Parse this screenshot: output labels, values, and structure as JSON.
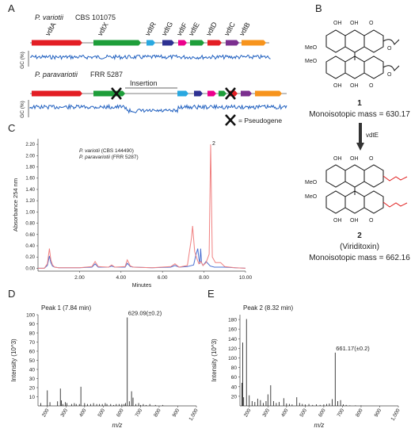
{
  "panels": {
    "A": "A",
    "B": "B",
    "C": "C",
    "D": "D",
    "E": "E"
  },
  "panel_a": {
    "strain1_species": "P. variotii",
    "strain1_id": "CBS 101075",
    "strain2_species": "P. paravariotii",
    "strain2_id": "FRR 5287",
    "genes": [
      "vdtA",
      "vdtX",
      "vdtR",
      "vdtG",
      "vdtF",
      "vdtE",
      "vdtD",
      "vdtC",
      "vdtB"
    ],
    "gene_colors": [
      "#e31e24",
      "#1e9e3a",
      "#29a8e0",
      "#2e3192",
      "#ec008c",
      "#1e9e3a",
      "#e31e24",
      "#7b2f8f",
      "#f7941d"
    ],
    "gc_label": "GC (%)",
    "insertion_label": "Insertion",
    "pseudogene_label": "= Pseudogene",
    "gc_color": "#1f5fbf"
  },
  "panel_b": {
    "compound1_number": "1",
    "compound1_mass": "Monoisotopic mass = 630.17",
    "enzyme": "vdtE",
    "compound2_number": "2",
    "compound2_name": "(Viriditoxin)",
    "compound2_mass": "Monoisotopic mass = 662.16",
    "ring_labels": {
      "oh": "OH",
      "o": "O",
      "meo": "MeO"
    }
  },
  "chart_data": [
    {
      "type": "line",
      "panel": "C",
      "ylabel": "Absorbance 254 nm",
      "xlabel": "Minutes",
      "xlim": [
        0,
        10
      ],
      "ylim": [
        -0.05,
        2.3
      ],
      "xticks": [
        "2.00",
        "4.00",
        "6.00",
        "8.00",
        "10.00"
      ],
      "yticks": [
        "0.00",
        "0.20",
        "0.40",
        "0.60",
        "0.80",
        "1.00",
        "1.20",
        "1.40",
        "1.60",
        "1.80",
        "2.00",
        "2.20"
      ],
      "legend_placement": "top-left",
      "peak_label": "2",
      "series": [
        {
          "name_species": "P. variotii",
          "name_strain": "(CBS 144490)",
          "color": "#f08080",
          "x": [
            0,
            0.3,
            0.45,
            0.55,
            0.62,
            0.7,
            0.8,
            1.0,
            2.0,
            2.6,
            2.75,
            2.9,
            3.4,
            3.55,
            3.7,
            4.2,
            4.3,
            4.45,
            4.6,
            5.5,
            6.4,
            6.6,
            6.8,
            7.2,
            7.4,
            7.45,
            7.55,
            7.65,
            7.75,
            7.85,
            7.95,
            8.1,
            8.25,
            8.32,
            8.4,
            8.55,
            8.8,
            9.0,
            9.5,
            10.0
          ],
          "y": [
            0.0,
            0.0,
            0.08,
            0.35,
            0.15,
            0.06,
            0.02,
            0.01,
            0.01,
            0.03,
            0.12,
            0.03,
            0.02,
            0.06,
            0.02,
            0.03,
            0.15,
            0.04,
            0.02,
            0.01,
            0.03,
            0.08,
            0.02,
            0.05,
            0.55,
            0.75,
            0.3,
            0.18,
            0.08,
            0.12,
            0.05,
            0.1,
            0.25,
            2.2,
            0.2,
            0.1,
            0.1,
            0.03,
            0.01,
            0.0
          ]
        },
        {
          "name_species": "P. paravariotii",
          "name_strain": "(FRR 5287)",
          "color": "#4a6fd1",
          "x": [
            0,
            0.3,
            0.45,
            0.55,
            0.62,
            0.7,
            0.8,
            1.0,
            2.0,
            2.6,
            2.75,
            2.9,
            3.4,
            3.55,
            3.7,
            4.2,
            4.3,
            4.45,
            4.6,
            5.5,
            6.4,
            6.6,
            6.8,
            7.2,
            7.5,
            7.6,
            7.7,
            7.75,
            7.8,
            7.84,
            7.88,
            7.95,
            8.1,
            8.3,
            8.5,
            9.0,
            9.5,
            10.0
          ],
          "y": [
            0.0,
            0.0,
            0.05,
            0.22,
            0.1,
            0.04,
            0.02,
            0.01,
            0.01,
            0.02,
            0.08,
            0.02,
            0.02,
            0.04,
            0.02,
            0.02,
            0.09,
            0.03,
            0.02,
            0.01,
            0.02,
            0.05,
            0.02,
            0.03,
            0.06,
            0.22,
            0.35,
            0.18,
            0.08,
            0.35,
            0.1,
            0.05,
            0.12,
            0.04,
            0.02,
            0.02,
            0.01,
            0.0
          ]
        }
      ]
    },
    {
      "type": "bar",
      "panel": "D",
      "title": "Peak 1 (7.84 min)",
      "ylabel": "Intensity (10^3)",
      "xlabel": "m/z",
      "xlim": [
        150,
        1000
      ],
      "ylim": [
        0,
        100
      ],
      "xticks": [
        "200",
        "300",
        "400",
        "500",
        "600",
        "700",
        "800",
        "900",
        "1,000"
      ],
      "yticks": [
        "10",
        "20",
        "30",
        "40",
        "50",
        "60",
        "70",
        "80",
        "90",
        "100"
      ],
      "annotation": "629.09(±0.2)",
      "x": [
        165,
        200,
        214,
        255,
        270,
        275,
        283,
        297,
        305,
        330,
        345,
        355,
        372,
        380,
        400,
        415,
        432,
        448,
        465,
        480,
        495,
        511,
        520,
        540,
        556,
        570,
        585,
        600,
        612,
        620,
        629.09,
        640,
        652,
        660,
        675,
        690,
        700,
        715,
        730,
        750,
        780,
        820
      ],
      "values": [
        3,
        17,
        4,
        5,
        19,
        6,
        2,
        4,
        3,
        2,
        3,
        2,
        2,
        21,
        3,
        2,
        2,
        3,
        2,
        2,
        2,
        3,
        2,
        2,
        1,
        2,
        2,
        2,
        2,
        3,
        97,
        5,
        16,
        9,
        2,
        3,
        1,
        2,
        1,
        2,
        1,
        1
      ]
    },
    {
      "type": "bar",
      "panel": "E",
      "title": "Peak 2 (8.32 min)",
      "ylabel": "Intensity (10^3)",
      "xlabel": "m/z",
      "xlim": [
        150,
        1000
      ],
      "ylim": [
        0,
        190
      ],
      "xticks": [
        "200",
        "300",
        "400",
        "500",
        "600",
        "700",
        "800",
        "900",
        "1,000"
      ],
      "yticks": [
        "20",
        "40",
        "60",
        "80",
        "100",
        "120",
        "140",
        "160",
        "180"
      ],
      "annotation": "661.17(±0.2)",
      "x": [
        160,
        165,
        170,
        185,
        200,
        215,
        230,
        245,
        260,
        275,
        290,
        300,
        315,
        330,
        345,
        360,
        385,
        400,
        415,
        430,
        455,
        470,
        485,
        500,
        520,
        540,
        560,
        580,
        600,
        615,
        630,
        645,
        661.17,
        675,
        690,
        705,
        720,
        740,
        770,
        800
      ],
      "values": [
        48,
        132,
        18,
        181,
        22,
        10,
        8,
        15,
        12,
        6,
        10,
        24,
        43,
        10,
        6,
        8,
        16,
        5,
        4,
        3,
        18,
        6,
        4,
        3,
        4,
        2,
        3,
        2,
        3,
        4,
        5,
        14,
        111,
        10,
        12,
        3,
        2,
        1,
        1,
        1
      ]
    }
  ]
}
